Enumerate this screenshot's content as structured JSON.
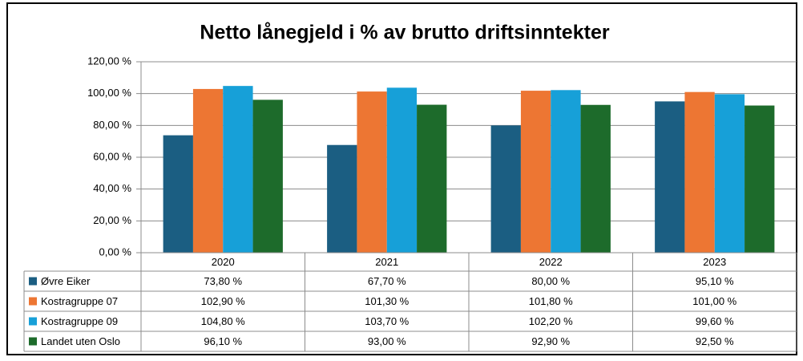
{
  "chart_data": {
    "type": "bar",
    "title": "Netto lånegjeld i % av brutto driftsinntekter",
    "categories": [
      "2020",
      "2021",
      "2022",
      "2023"
    ],
    "series": [
      {
        "name": "Øvre Eiker",
        "color": "#1b5e82",
        "values": [
          73.8,
          67.7,
          80.0,
          95.1
        ],
        "value_labels": [
          "73,80 %",
          "67,70 %",
          "80,00 %",
          "95,10 %"
        ]
      },
      {
        "name": "Kostragruppe 07",
        "color": "#ed7633",
        "values": [
          102.9,
          101.3,
          101.8,
          101.0
        ],
        "value_labels": [
          "102,90 %",
          "101,30 %",
          "101,80 %",
          "101,00 %"
        ]
      },
      {
        "name": "Kostragruppe 09",
        "color": "#17a0d8",
        "values": [
          104.8,
          103.7,
          102.2,
          99.6
        ],
        "value_labels": [
          "104,80 %",
          "103,70 %",
          "102,20 %",
          "99,60 %"
        ]
      },
      {
        "name": "Landet uten Oslo",
        "color": "#1d6b2b",
        "values": [
          96.1,
          93.0,
          92.9,
          92.5
        ],
        "value_labels": [
          "96,10 %",
          "93,00 %",
          "92,90 %",
          "92,50 %"
        ]
      }
    ],
    "ylim": [
      0,
      120
    ],
    "yticks": [
      {
        "value": 0,
        "label": "0,00 %"
      },
      {
        "value": 20,
        "label": "20,00 %"
      },
      {
        "value": 40,
        "label": "40,00 %"
      },
      {
        "value": 60,
        "label": "60,00 %"
      },
      {
        "value": 80,
        "label": "80,00 %"
      },
      {
        "value": 100,
        "label": "100,00 %"
      },
      {
        "value": 120,
        "label": "120,00 %"
      }
    ],
    "grid": true
  }
}
